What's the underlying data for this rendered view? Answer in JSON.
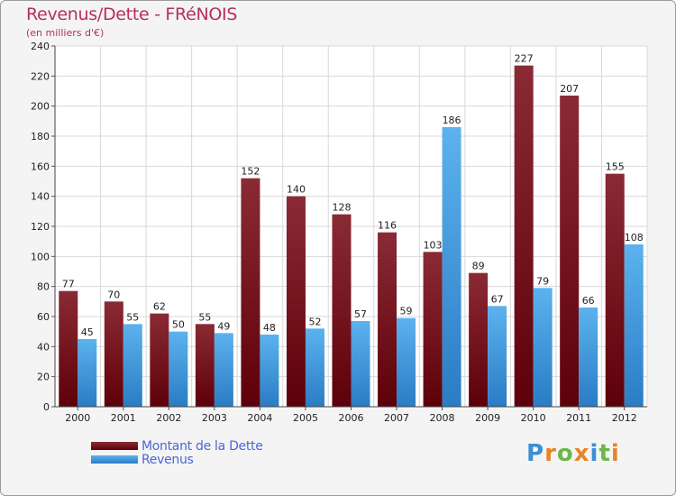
{
  "header": {
    "title": "Revenus/Dette - FRéNOIS",
    "subtitle": "(en milliers d'€)"
  },
  "legend": {
    "items": [
      {
        "label": "Montant de la Dette",
        "color": "#7a1018"
      },
      {
        "label": "Revenus",
        "color": "#4aa3e6"
      }
    ]
  },
  "logo": {
    "letters": [
      "P",
      "r",
      "o",
      "x",
      "i",
      "t",
      "i"
    ],
    "colors": [
      "#3a8fd6",
      "#e8842a",
      "#6bb84a",
      "#e8842a",
      "#3a8fd6",
      "#6bb84a",
      "#e8842a"
    ]
  },
  "chart_data": {
    "type": "bar",
    "title": "Revenus/Dette - FRéNOIS",
    "subtitle": "(en milliers d'€)",
    "xlabel": "",
    "ylabel": "",
    "ylim": [
      0,
      240
    ],
    "yticks": [
      0,
      20,
      40,
      60,
      80,
      100,
      120,
      140,
      160,
      180,
      200,
      220,
      240
    ],
    "grid": true,
    "legend_position": "bottom-left",
    "categories": [
      "2000",
      "2001",
      "2002",
      "2003",
      "2004",
      "2005",
      "2006",
      "2007",
      "2008",
      "2009",
      "2010",
      "2011",
      "2012"
    ],
    "series": [
      {
        "name": "Montant de la Dette",
        "color": "#7a1018",
        "values": [
          77,
          70,
          62,
          55,
          152,
          140,
          128,
          116,
          103,
          89,
          227,
          207,
          155
        ]
      },
      {
        "name": "Revenus",
        "color": "#4aa3e6",
        "values": [
          45,
          55,
          50,
          49,
          48,
          52,
          57,
          59,
          186,
          67,
          79,
          66,
          108
        ]
      }
    ]
  }
}
